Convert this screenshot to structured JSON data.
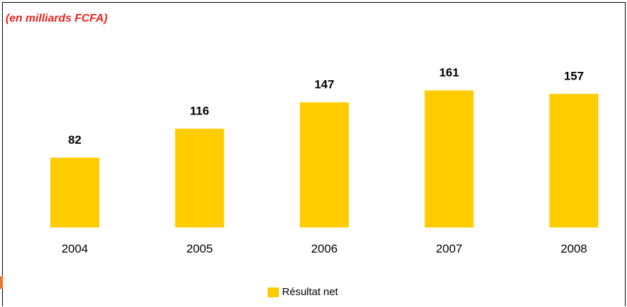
{
  "unit_note": "(en milliards FCFA)",
  "colors": {
    "bar": "#ffcc00",
    "unit_note": "#e8231e"
  },
  "chart_data": {
    "type": "bar",
    "categories": [
      "2004",
      "2005",
      "2006",
      "2007",
      "2008"
    ],
    "series": [
      {
        "name": "Résultat net",
        "values": [
          82,
          116,
          147,
          161,
          157
        ]
      }
    ],
    "title": "",
    "xlabel": "",
    "ylabel": "",
    "ylim": [
      0,
      180
    ],
    "grid": false,
    "legend_position": "bottom-center",
    "data_labels": true
  }
}
